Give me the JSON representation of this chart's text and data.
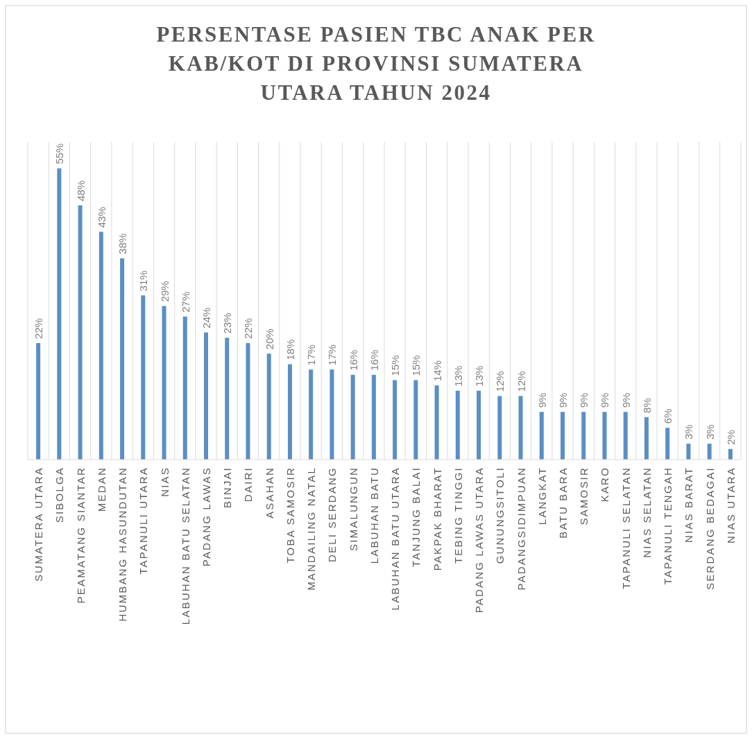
{
  "chart_data": {
    "type": "bar",
    "title": "PERSENTASE PASIEN TBC ANAK PER KAB/KOT DI PROVINSI SUMATERA UTARA TAHUN 2024",
    "categories": [
      "SUMATERA UTARA",
      "SIBOLGA",
      "PEAMATANG SIANTAR",
      "MEDAN",
      "HUMBANG HASUNDUTAN",
      "TAPANULI UTARA",
      "NIAS",
      "LABUHAN BATU SELATAN",
      "PADANG LAWAS",
      "BINJAI",
      "DAIRI",
      "ASAHAN",
      "TOBA SAMOSIR",
      "MANDAILING NATAL",
      "DELI SERDANG",
      "SIMALUNGUN",
      "LABUHAN BATU",
      "LABUHAN BATU UTARA",
      "TANJUNG BALAI",
      "PAKPAK BHARAT",
      "TEBING TINGGI",
      "PADANG LAWAS UTARA",
      "GUNUNGSITOLI",
      "PADANGSIDIMPUAN",
      "LANGKAT",
      "BATU BARA",
      "SAMOSIR",
      "KARO",
      "TAPANULI SELATAN",
      "NIAS SELATAN",
      "TAPANULI TENGAH",
      "NIAS BARAT",
      "SERDANG BEDAGAI",
      "NIAS UTARA"
    ],
    "values": [
      22,
      55,
      48,
      43,
      38,
      31,
      29,
      27,
      24,
      23,
      22,
      20,
      18,
      17,
      17,
      16,
      16,
      15,
      15,
      14,
      13,
      13,
      12,
      12,
      9,
      9,
      9,
      9,
      9,
      8,
      6,
      3,
      3,
      2
    ],
    "value_labels": [
      "22%",
      "55%",
      "48%",
      "43%",
      "38%",
      "31%",
      "29%",
      "27%",
      "24%",
      "23%",
      "22%",
      "20%",
      "18%",
      "17%",
      "17%",
      "16%",
      "16%",
      "15%",
      "15%",
      "14%",
      "13%",
      "13%",
      "12%",
      "12%",
      "9%",
      "9%",
      "9%",
      "9%",
      "9%",
      "8%",
      "6%",
      "3%",
      "3%",
      "2%"
    ],
    "color": "#5b8ec4",
    "grid": "x"
  }
}
